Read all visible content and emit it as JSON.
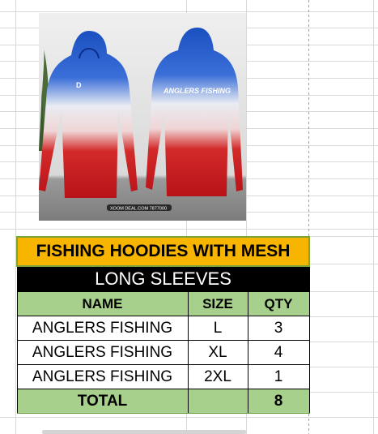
{
  "sheet": {
    "image": {
      "alt": "fishing-hoodie-product-photo",
      "back_print": "ANGLERS FISHING",
      "watermark": "XOOM DEAL.COM 7877000"
    },
    "table": {
      "title": "FISHING HOODIES WITH MESH",
      "subtitle": "LONG SLEEVES",
      "headers": {
        "name": "NAME",
        "size": "SIZE",
        "qty": "QTY"
      },
      "rows": [
        {
          "name": "ANGLERS FISHING",
          "size": "L",
          "qty": "3"
        },
        {
          "name": "ANGLERS FISHING",
          "size": "XL",
          "qty": "4"
        },
        {
          "name": "ANGLERS FISHING",
          "size": "2XL",
          "qty": "1"
        }
      ],
      "total": {
        "label": "TOTAL",
        "size": "",
        "qty": "8"
      }
    }
  },
  "colors": {
    "title_fill": "#f7b500",
    "header_fill": "#a8d08d",
    "subtitle_fill": "#000000",
    "selection_border": "#7aa33a",
    "hoodie_blue": "#1a4fc0",
    "hoodie_red": "#c8151b"
  }
}
